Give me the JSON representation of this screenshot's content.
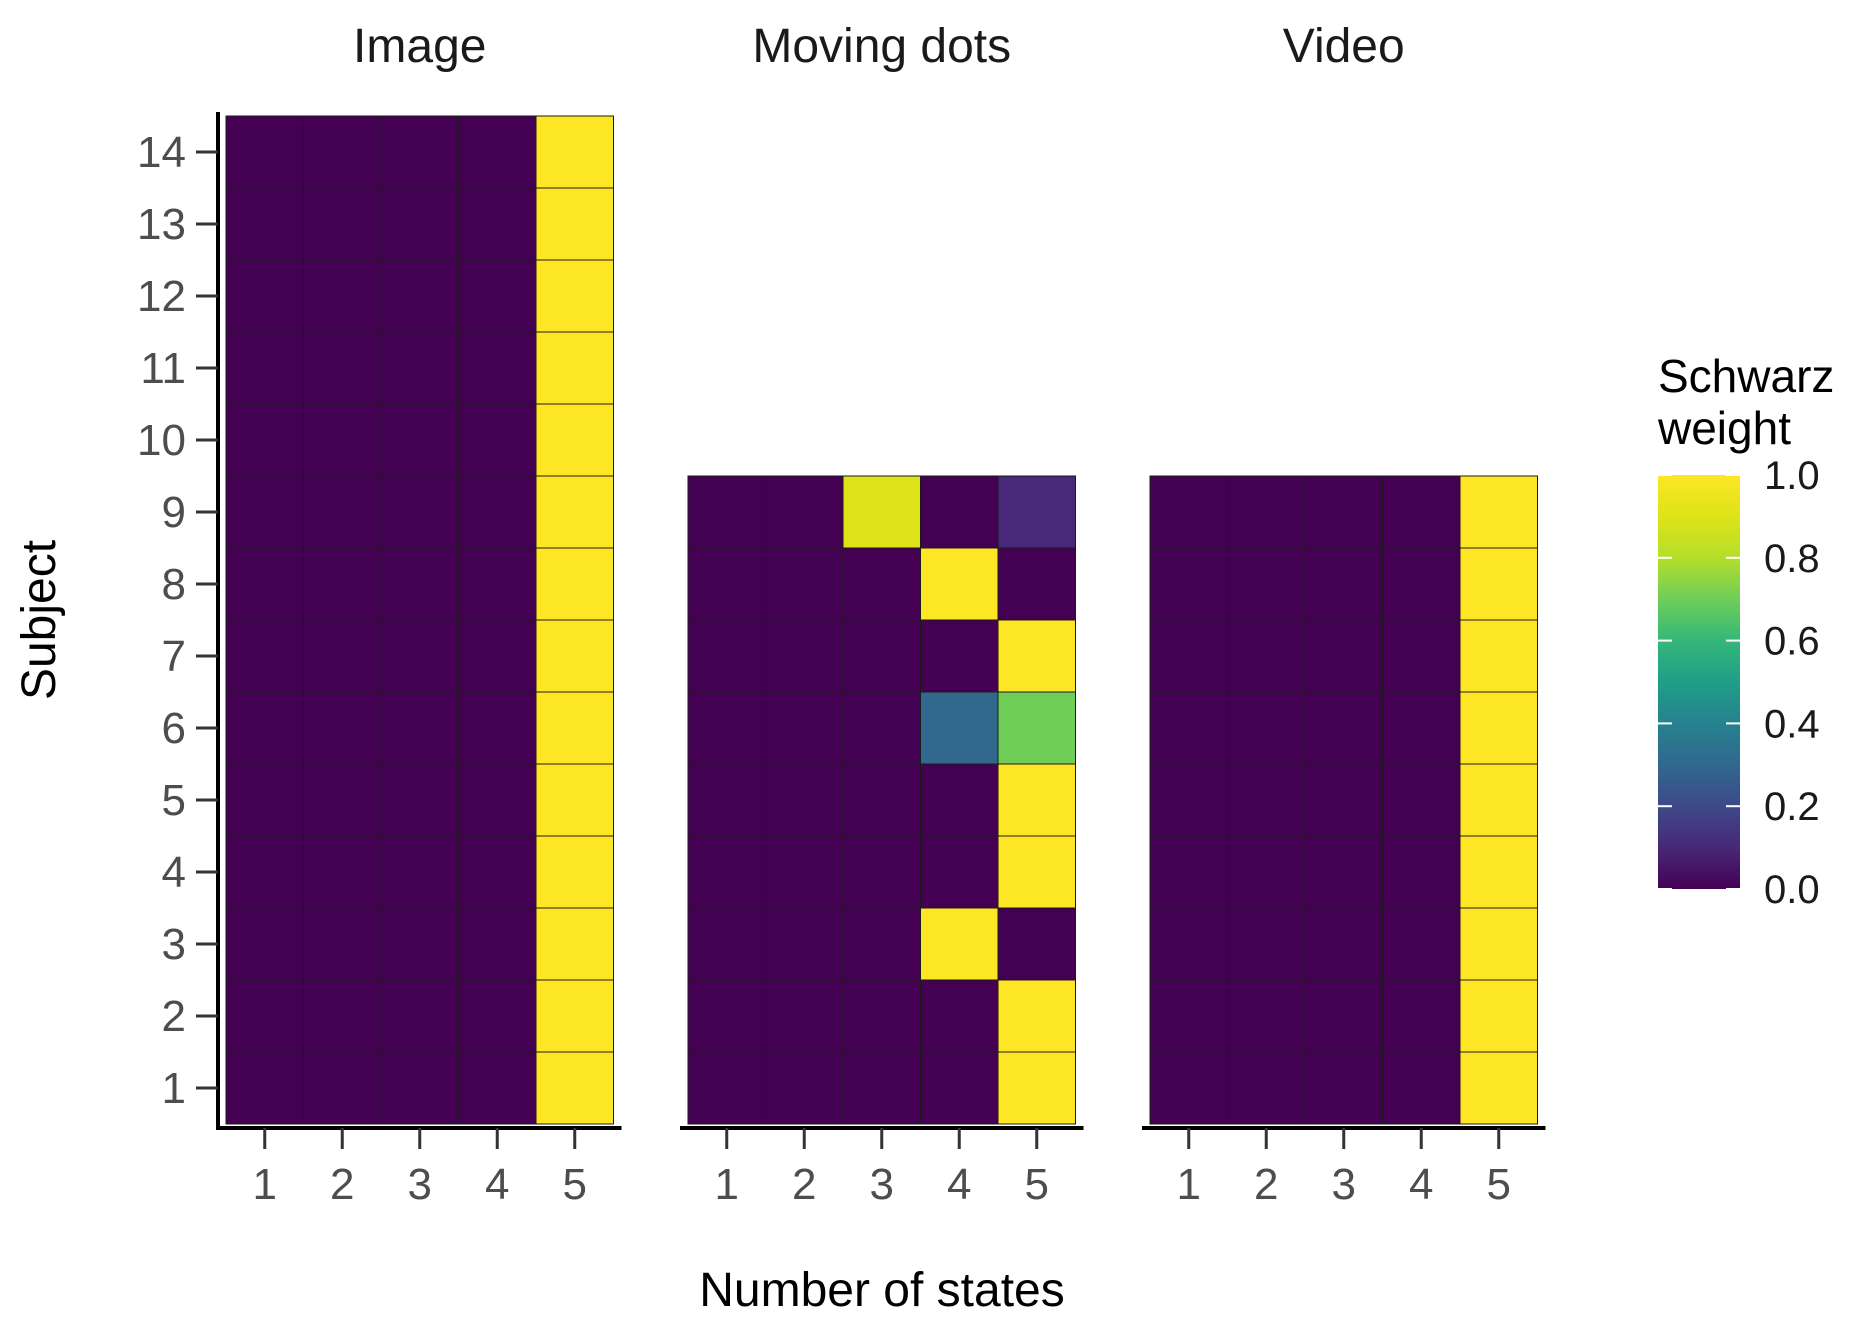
{
  "chart_data": {
    "type": "heatmap",
    "xlabel": "Number of states",
    "ylabel": "Subject",
    "x_categories": [
      "1",
      "2",
      "3",
      "4",
      "5"
    ],
    "legend": {
      "title_lines": [
        "Schwarz",
        "weight"
      ],
      "ticks": [
        "0.0",
        "0.2",
        "0.4",
        "0.6",
        "0.8",
        "1.0"
      ],
      "range": [
        0,
        1
      ],
      "placement": "right",
      "palette": "viridis"
    },
    "facets": [
      {
        "title": "Image",
        "subjects": [
          "1",
          "2",
          "3",
          "4",
          "5",
          "6",
          "7",
          "8",
          "9",
          "10",
          "11",
          "12",
          "13",
          "14"
        ],
        "values": [
          [
            0,
            0,
            0,
            0,
            1
          ],
          [
            0,
            0,
            0,
            0,
            1
          ],
          [
            0,
            0,
            0,
            0,
            1
          ],
          [
            0,
            0,
            0,
            0,
            1
          ],
          [
            0,
            0,
            0,
            0,
            1
          ],
          [
            0,
            0,
            0,
            0,
            1
          ],
          [
            0,
            0,
            0,
            0,
            1
          ],
          [
            0,
            0,
            0,
            0,
            1
          ],
          [
            0,
            0,
            0,
            0,
            1
          ],
          [
            0,
            0,
            0,
            0,
            1
          ],
          [
            0,
            0,
            0,
            0,
            1
          ],
          [
            0,
            0,
            0,
            0,
            1
          ],
          [
            0,
            0,
            0,
            0,
            1
          ],
          [
            0,
            0,
            0,
            0,
            1
          ]
        ]
      },
      {
        "title": "Moving dots",
        "subjects": [
          "1",
          "2",
          "3",
          "4",
          "5",
          "6",
          "7",
          "8",
          "9"
        ],
        "values": [
          [
            0,
            0,
            0,
            0,
            1
          ],
          [
            0,
            0,
            0,
            0,
            1
          ],
          [
            0,
            0,
            0,
            1,
            0
          ],
          [
            0,
            0,
            0,
            0,
            1
          ],
          [
            0,
            0,
            0,
            0,
            1
          ],
          [
            0,
            0,
            0,
            0.3,
            0.7
          ],
          [
            0,
            0,
            0,
            0,
            1
          ],
          [
            0,
            0,
            0,
            1,
            0
          ],
          [
            0,
            0,
            0.9,
            0,
            0.1
          ]
        ]
      },
      {
        "title": "Video",
        "subjects": [
          "1",
          "2",
          "3",
          "4",
          "5",
          "6",
          "7",
          "8",
          "9"
        ],
        "values": [
          [
            0,
            0,
            0,
            0,
            1
          ],
          [
            0,
            0,
            0,
            0,
            1
          ],
          [
            0,
            0,
            0,
            0,
            1
          ],
          [
            0,
            0,
            0,
            0,
            1
          ],
          [
            0,
            0,
            0,
            0,
            1
          ],
          [
            0,
            0,
            0,
            0,
            1
          ],
          [
            0,
            0,
            0,
            0,
            1
          ],
          [
            0,
            0,
            0,
            0,
            1
          ],
          [
            0,
            0,
            0,
            0,
            1
          ]
        ]
      }
    ]
  }
}
